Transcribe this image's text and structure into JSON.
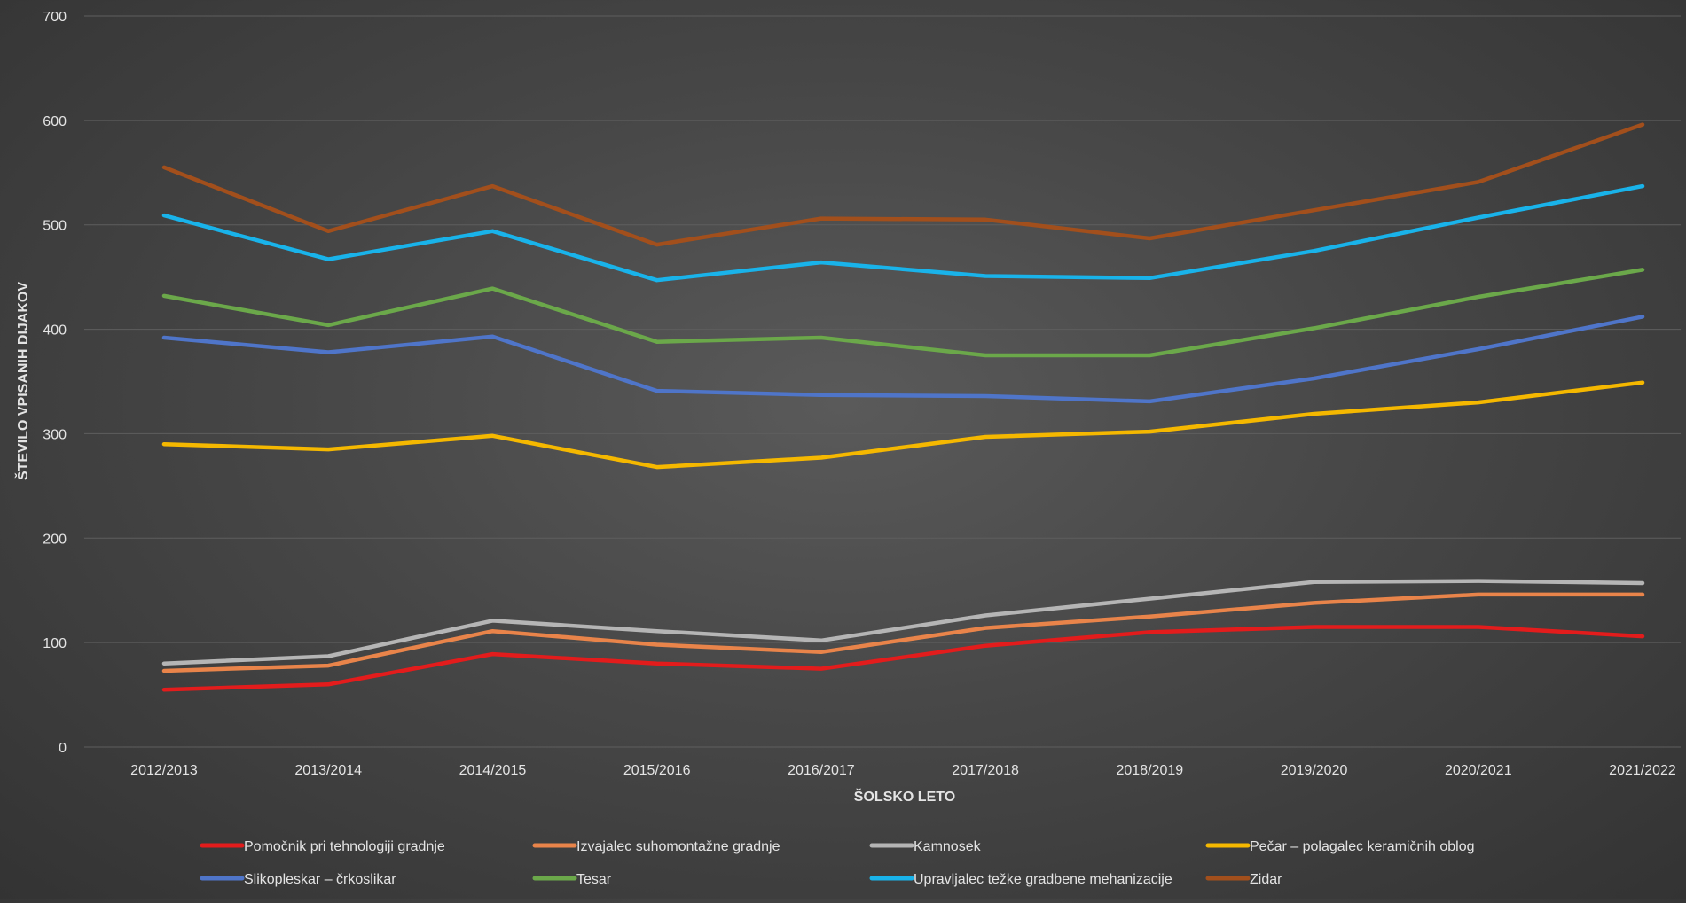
{
  "chart_data": {
    "type": "line",
    "title": "",
    "xlabel": "ŠOLSKO LETO",
    "ylabel": "ŠTEVILO VPISANIH DIJAKOV",
    "ylim": [
      0,
      700
    ],
    "yticks": [
      0,
      100,
      200,
      300,
      400,
      500,
      600,
      700
    ],
    "grid": true,
    "legend": "bottom",
    "categories": [
      "2012/2013",
      "2013/2014",
      "2014/2015",
      "2015/2016",
      "2016/2017",
      "2017/2018",
      "2018/2019",
      "2019/2020",
      "2020/2021",
      "2021/2022"
    ],
    "series": [
      {
        "name": "Pomočnik pri tehnologiji gradnje",
        "color": "#e31c1c",
        "values": [
          55,
          60,
          89,
          80,
          75,
          97,
          110,
          115,
          115,
          106
        ]
      },
      {
        "name": "Izvajalec suhomontažne gradnje",
        "color": "#e9844a",
        "values": [
          73,
          78,
          111,
          98,
          91,
          114,
          125,
          138,
          146,
          146
        ]
      },
      {
        "name": "Kamnosek",
        "color": "#b5b5b5",
        "values": [
          80,
          87,
          121,
          111,
          102,
          126,
          142,
          158,
          159,
          157
        ]
      },
      {
        "name": "Pečar – polagalec keramičnih oblog",
        "color": "#f5b800",
        "values": [
          290,
          285,
          298,
          268,
          277,
          297,
          302,
          319,
          330,
          349
        ]
      },
      {
        "name": "Slikopleskar – črkoslikar",
        "color": "#4f75c9",
        "values": [
          392,
          378,
          393,
          341,
          337,
          336,
          331,
          353,
          381,
          412
        ]
      },
      {
        "name": "Tesar",
        "color": "#6ba84a",
        "values": [
          432,
          404,
          439,
          388,
          392,
          375,
          375,
          401,
          431,
          457
        ]
      },
      {
        "name": "Upravljalec težke gradbene mehanizacije",
        "color": "#19b3ea",
        "values": [
          509,
          467,
          494,
          447,
          464,
          451,
          449,
          475,
          507,
          537
        ]
      },
      {
        "name": "Zidar",
        "color": "#a24f1c",
        "values": [
          555,
          494,
          537,
          481,
          506,
          505,
          487,
          514,
          541,
          596
        ]
      }
    ]
  }
}
